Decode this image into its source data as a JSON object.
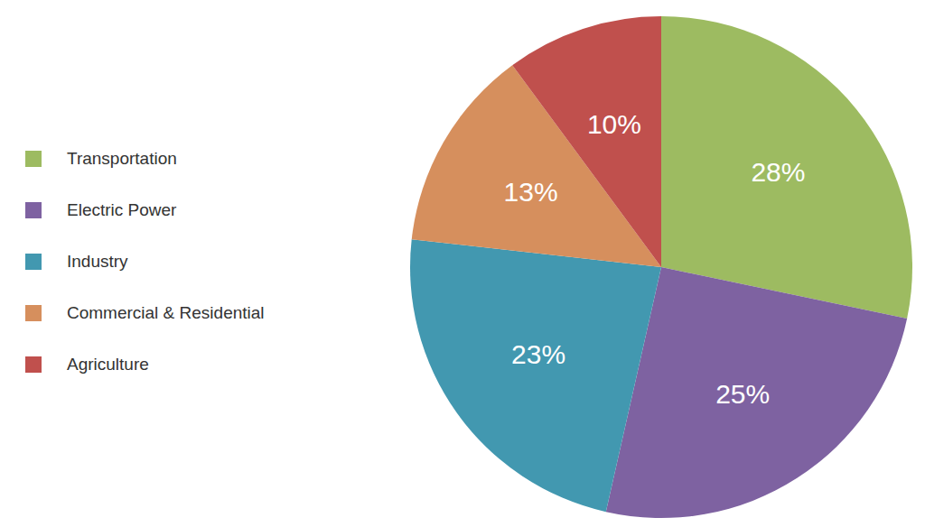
{
  "chart_data": {
    "type": "pie",
    "categories": [
      "Transportation",
      "Electric Power",
      "Industry",
      "Commercial & Residential",
      "Agriculture"
    ],
    "values": [
      28,
      25,
      23,
      13,
      10
    ],
    "value_labels": [
      "28%",
      "25%",
      "23%",
      "13%",
      "10%"
    ],
    "colors": [
      "#9dbb61",
      "#7e62a1",
      "#4298b0",
      "#d68f5d",
      "#c0504d"
    ],
    "data_labels": true
  }
}
